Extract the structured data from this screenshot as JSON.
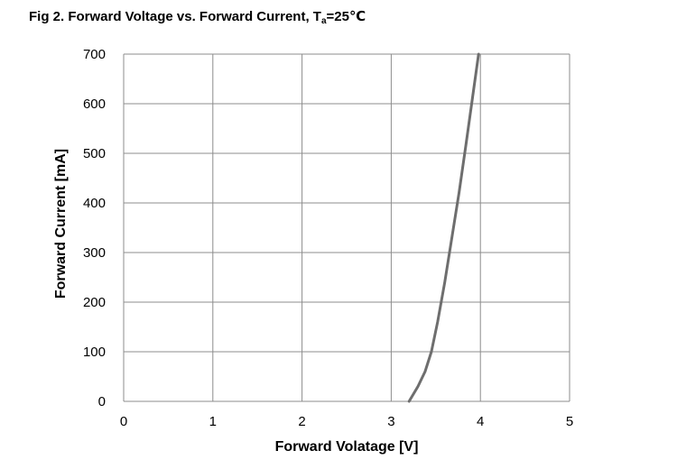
{
  "title": {
    "prefix": "Fig 2. Forward Voltage vs. Forward Current, T",
    "subscript": "a",
    "suffix": "=25℃"
  },
  "chart_data": {
    "type": "line",
    "xlabel": "Forward  Volatage [V]",
    "ylabel": "Forward Current [mA]",
    "xlim": [
      0,
      5
    ],
    "ylim": [
      0,
      700
    ],
    "xticks": [
      "0",
      "1",
      "2",
      "3",
      "4",
      "5"
    ],
    "yticks": [
      "0",
      "100",
      "200",
      "300",
      "400",
      "500",
      "600",
      "700"
    ],
    "grid": true,
    "series": [
      {
        "color": "#6e6e6e",
        "x": [
          3.2,
          3.3,
          3.38,
          3.45,
          3.52,
          3.6,
          3.68,
          3.76,
          3.84,
          3.91,
          3.98
        ],
        "y": [
          0,
          30,
          60,
          100,
          160,
          240,
          330,
          420,
          520,
          610,
          700
        ]
      }
    ]
  }
}
